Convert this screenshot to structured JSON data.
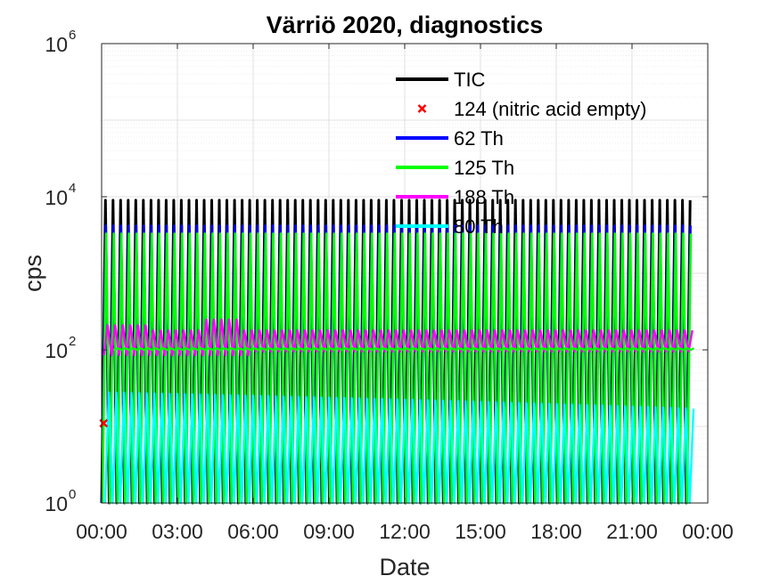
{
  "chart_data": {
    "type": "line",
    "title": "Värriö 2020, diagnostics",
    "xlabel": "Date",
    "ylabel": "cps",
    "y_scale": "log",
    "ylim": [
      1,
      1000000
    ],
    "y_ticks": [
      {
        "base": "10",
        "exp": "0",
        "value": 1
      },
      {
        "base": "10",
        "exp": "2",
        "value": 100
      },
      {
        "base": "10",
        "exp": "4",
        "value": 10000
      },
      {
        "base": "10",
        "exp": "6",
        "value": 1000000
      }
    ],
    "xlim": [
      "00:00",
      "24:00"
    ],
    "x_ticks": [
      "00:00",
      "03:00",
      "06:00",
      "09:00",
      "12:00",
      "15:00",
      "18:00",
      "21:00",
      "00:00"
    ],
    "grid": true,
    "legend_position": "top-right (inside)",
    "data_end_hour": 23.45,
    "oscillation_cycles": 78,
    "series": [
      {
        "name": "TIC",
        "color": "#000000",
        "style": "line",
        "peak": 9000,
        "trough": 1,
        "note": "oscillating"
      },
      {
        "name": "124 (nitric acid empty)",
        "color": "#ff0000",
        "style": "x-marker",
        "value": 11
      },
      {
        "name": "62 Th",
        "color": "#0000ff",
        "style": "line",
        "peak": 4200,
        "trough": 1
      },
      {
        "name": "125 Th",
        "color": "#00ff00",
        "style": "line",
        "peak": 3300,
        "trough": 1
      },
      {
        "name": "188 Th",
        "color": "#ff00ff",
        "style": "line",
        "peak": 200,
        "trough": 60
      },
      {
        "name": "80 Th",
        "color": "#00ffff",
        "style": "line",
        "peak": 28,
        "trough": 1
      }
    ]
  }
}
